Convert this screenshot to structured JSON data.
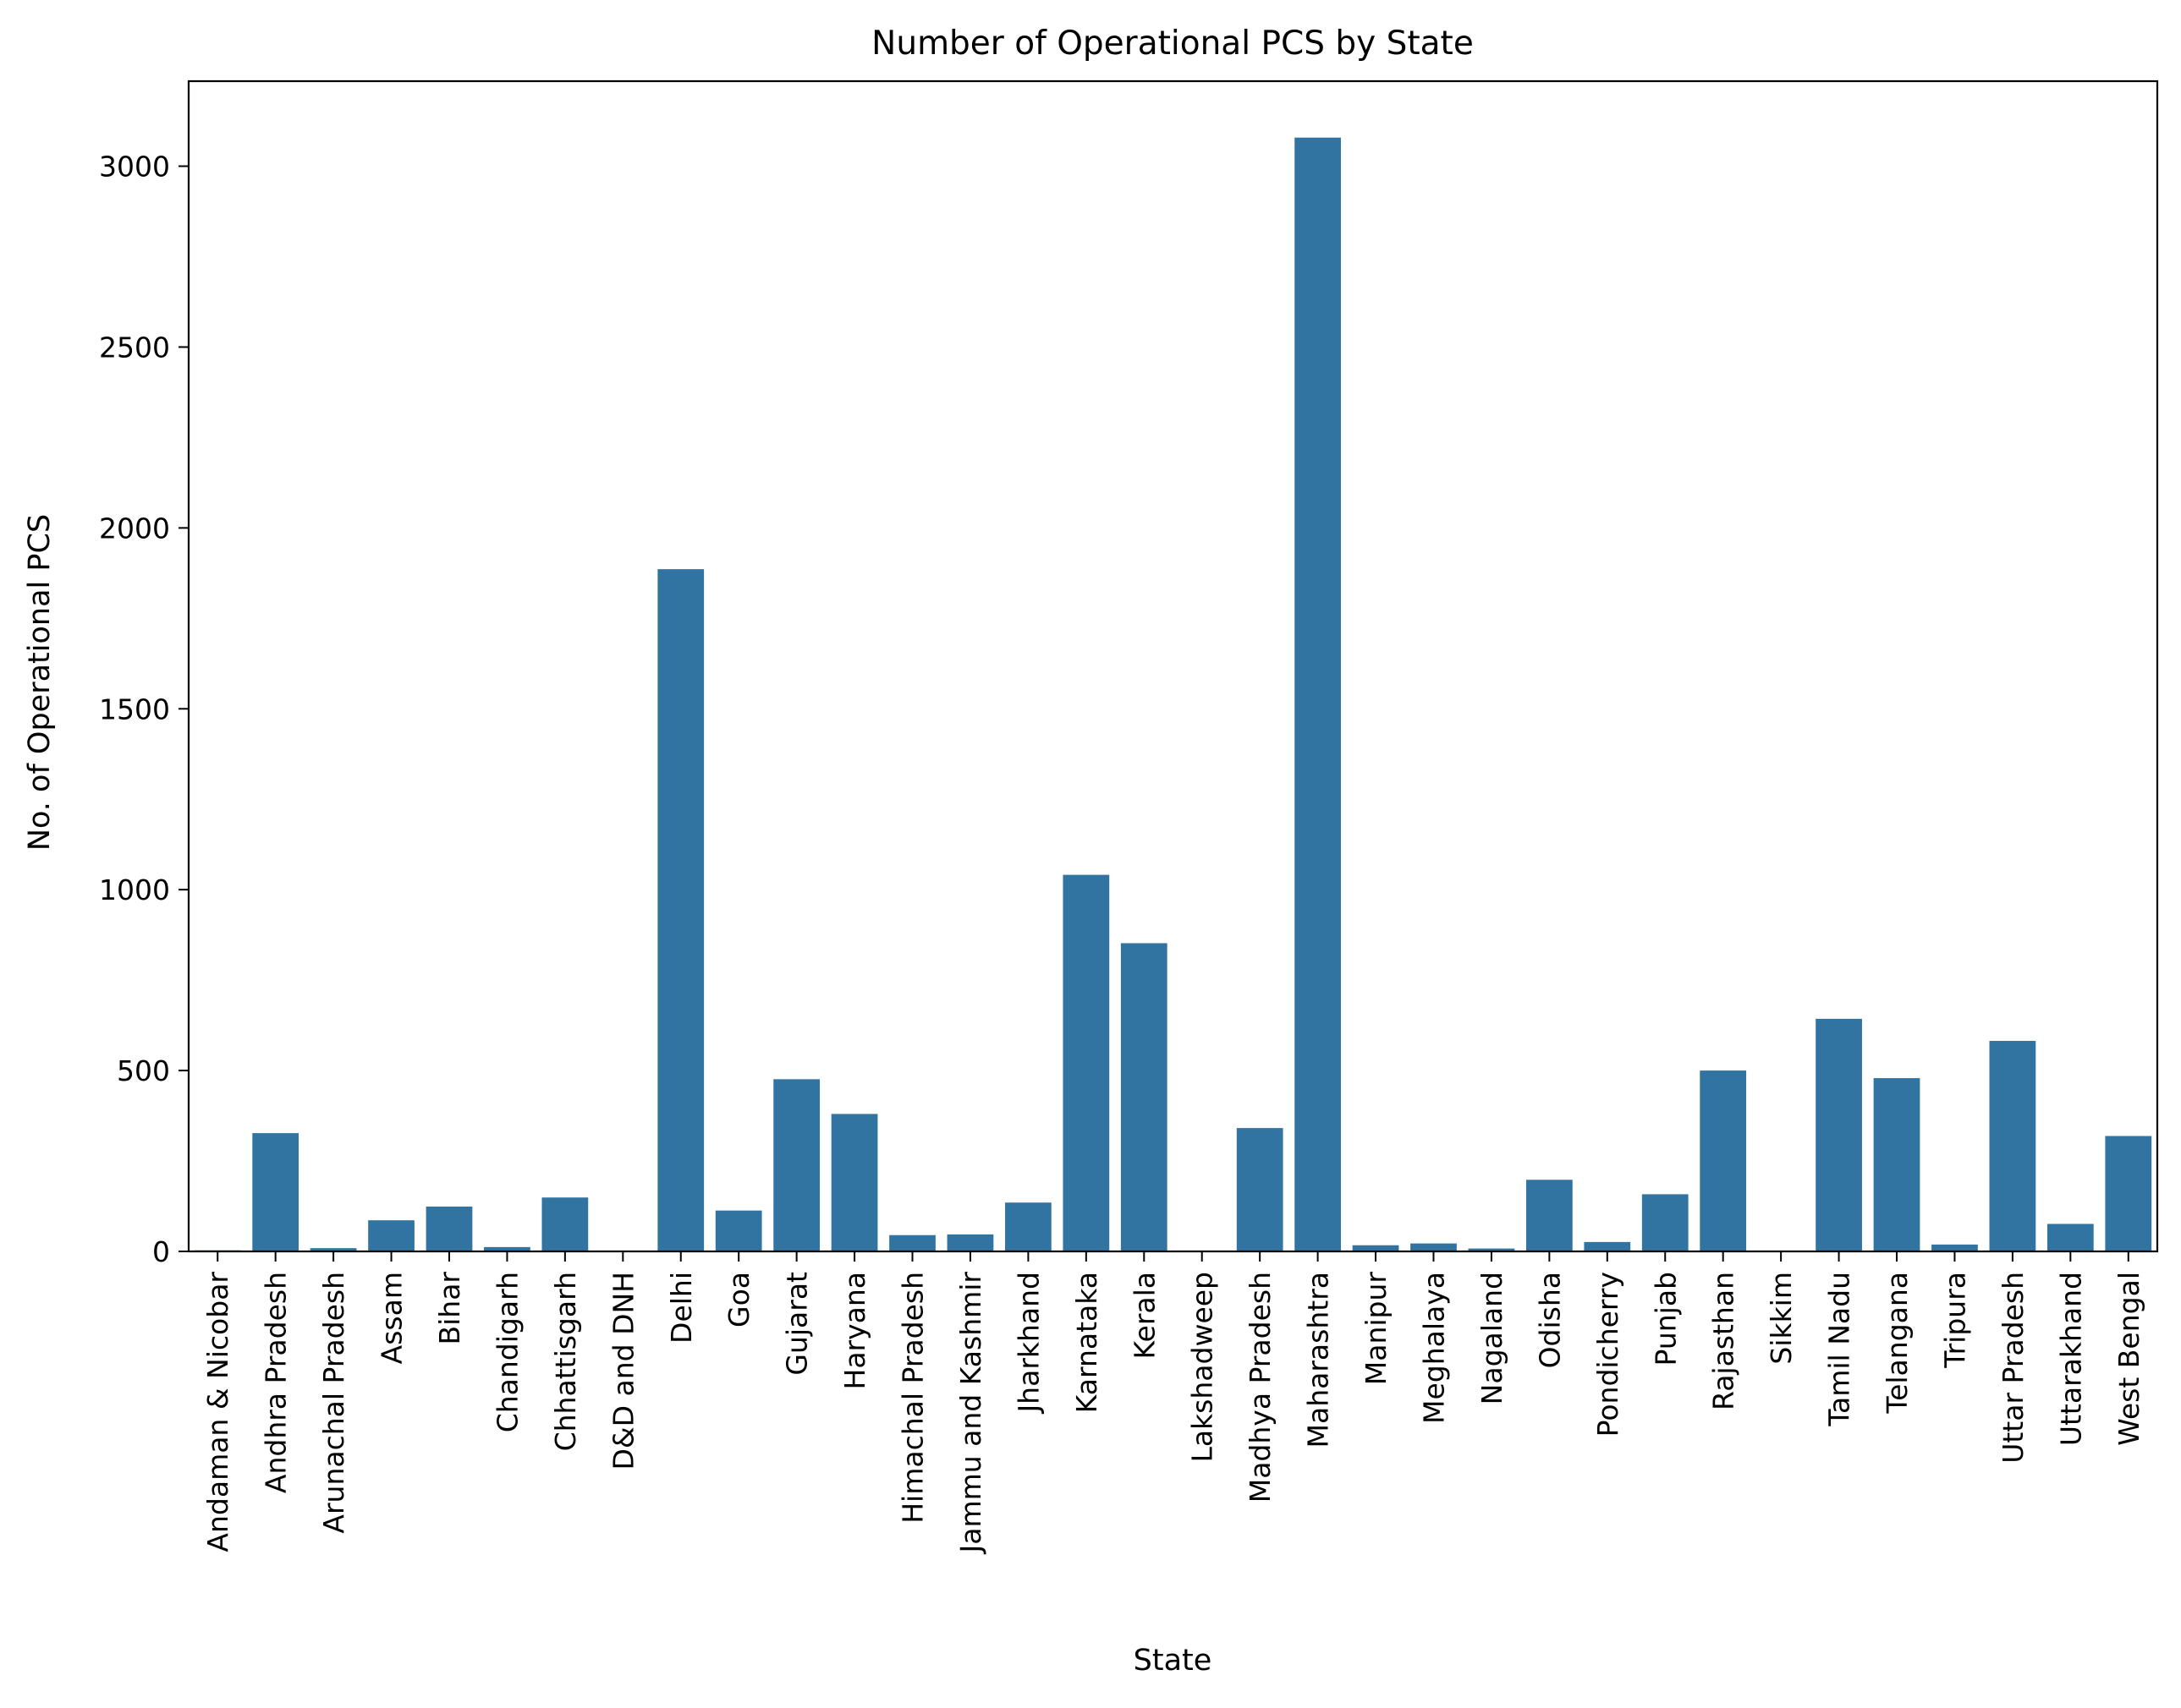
{
  "chart_data": {
    "type": "bar",
    "title": "Number of Operational PCS by State",
    "xlabel": "State",
    "ylabel": "No. of Operational PCS",
    "ylim": [
      0,
      3235
    ],
    "yticks": [
      0,
      500,
      1000,
      1500,
      2000,
      2500,
      3000
    ],
    "bar_color": "#3274a1",
    "categories": [
      "Andaman & Nicobar",
      "Andhra Pradesh",
      "Arunachal Pradesh",
      "Assam",
      "Bihar",
      "Chandigarh",
      "Chhattisgarh",
      "D&D and DNH",
      "Delhi",
      "Goa",
      "Gujarat",
      "Haryana",
      "Himachal Pradesh",
      "Jammu and Kashmir",
      "Jharkhand",
      "Karnataka",
      "Kerala",
      "Lakshadweep",
      "Madhya Pradesh",
      "Maharashtra",
      "Manipur",
      "Meghalaya",
      "Nagaland",
      "Odisha",
      "Pondicherry",
      "Punjab",
      "Rajasthan",
      "Sikkim",
      "Tamil Nadu",
      "Telangana",
      "Tripura",
      "Uttar Pradesh",
      "Uttarakhand",
      "West Bengal"
    ],
    "values": [
      3,
      327,
      9,
      86,
      124,
      12,
      149,
      1,
      1886,
      113,
      476,
      380,
      45,
      47,
      135,
      1041,
      852,
      1,
      341,
      3079,
      17,
      22,
      8,
      198,
      26,
      158,
      500,
      2,
      643,
      479,
      19,
      582,
      76,
      319
    ]
  }
}
